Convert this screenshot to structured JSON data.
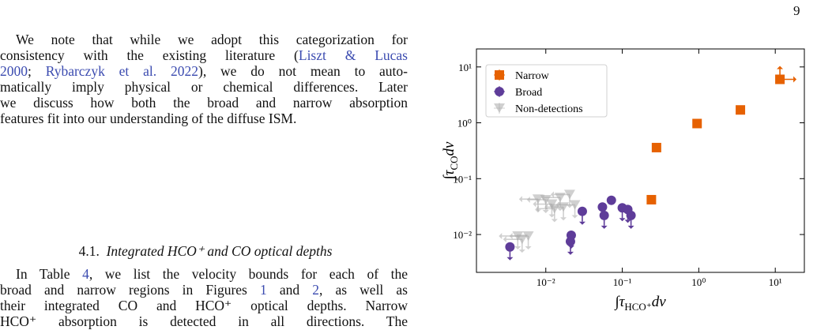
{
  "page_number": "9",
  "paragraph_1": [
    [
      "We note that while we adopt this categorization for"
    ],
    [
      "consistency with the existing literature (",
      {
        "link": "Liszt & Lucas"
      }
    ],
    [
      {
        "link": "2000"
      },
      "; ",
      {
        "link": "Rybarczyk et al. 2022"
      },
      "), we do not mean to auto-"
    ],
    [
      "matically imply physical or chemical differences. Later"
    ],
    [
      "we discuss how both the broad and narrow absorption"
    ],
    [
      "features fit into our understanding of the diffuse ISM."
    ]
  ],
  "heading": {
    "number": "4.1.",
    "title": "Integrated HCO⁺ and CO optical depths"
  },
  "paragraph_2": [
    [
      "In Table ",
      {
        "link": "4"
      },
      ", we list the velocity bounds for each of the"
    ],
    [
      "broad and narrow regions in Figures ",
      {
        "link": "1"
      },
      " and ",
      {
        "link": "2"
      },
      ", as well as"
    ],
    [
      "their integrated CO and HCO⁺ optical depths. Narrow"
    ],
    [
      "HCO⁺ absorption is detected in all directions. The"
    ]
  ],
  "chart_data": {
    "type": "scatter",
    "x_label": {
      "main": "∫τ",
      "sub": "HCO⁺",
      "tail": "dv"
    },
    "y_label": {
      "main": "∫τ",
      "sub": "CO",
      "tail": "dv"
    },
    "x_log": true,
    "y_log": true,
    "xlim": [
      0.00124,
      24
    ],
    "ylim": [
      0.0021,
      21
    ],
    "xticks": [
      {
        "value": 0.01,
        "label": "10⁻²"
      },
      {
        "value": 0.1,
        "label": "10⁻¹"
      },
      {
        "value": 1,
        "label": "10⁰"
      },
      {
        "value": 10,
        "label": "10¹"
      }
    ],
    "yticks": [
      {
        "value": 0.01,
        "label": "10⁻²"
      },
      {
        "value": 0.1,
        "label": "10⁻¹"
      },
      {
        "value": 1,
        "label": "10⁰"
      },
      {
        "value": 10,
        "label": "10¹"
      }
    ],
    "legend": "upper left",
    "series": [
      {
        "name": "Narrow",
        "color": "#e66101",
        "marker": "square",
        "opacity": 1,
        "x": [
          11.5,
          3.5,
          0.95,
          0.28,
          0.24
        ],
        "y": [
          6,
          1.7,
          0.97,
          0.36,
          0.042
        ],
        "arrows": [
          "up-right",
          null,
          null,
          null,
          null
        ]
      },
      {
        "name": "Broad",
        "color": "#5e3c99",
        "marker": "circle",
        "opacity": 1,
        "x": [
          0.0034,
          0.0215,
          0.021,
          0.03,
          0.055,
          0.058,
          0.072,
          0.1,
          0.118,
          0.13
        ],
        "y": [
          0.006,
          0.0097,
          0.0075,
          0.026,
          0.031,
          0.022,
          0.041,
          0.03,
          0.028,
          0.022
        ],
        "arrows": [
          "down",
          "down",
          "down",
          "down",
          null,
          "down",
          null,
          "down",
          "down",
          "down"
        ]
      },
      {
        "name": "Non-detections",
        "color": "#aaaaaa",
        "marker": "triangle-down",
        "opacity": 0.55,
        "x": [
          0.0043,
          0.0049,
          0.0059,
          0.0079,
          0.01,
          0.012,
          0.0154,
          0.017,
          0.0205,
          0.024,
          0.013
        ],
        "y": [
          0.0094,
          0.0082,
          0.0094,
          0.043,
          0.042,
          0.035,
          0.046,
          0.031,
          0.052,
          0.034,
          0.029
        ],
        "arrows": [
          "down-left",
          "down-left",
          "down-left",
          "down-left",
          "down-left",
          "down-left",
          "down-left",
          "down-left",
          "down-left",
          "down-left",
          "down-left"
        ]
      }
    ]
  }
}
